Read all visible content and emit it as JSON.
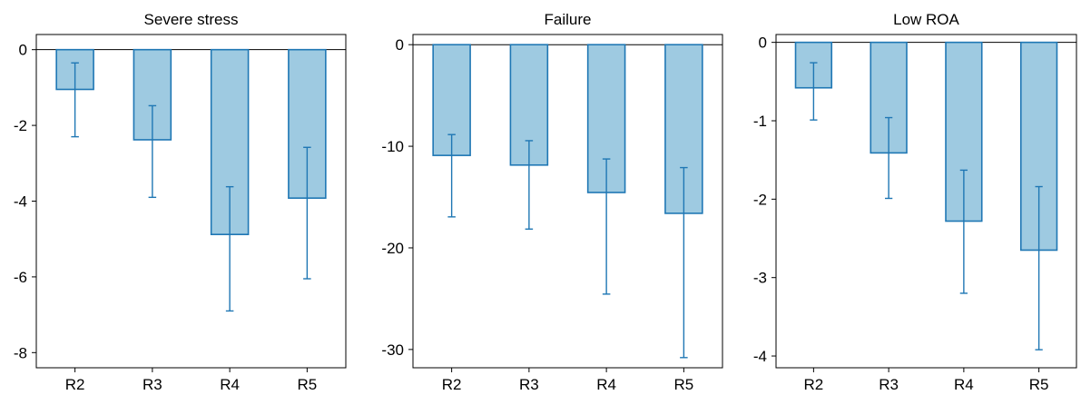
{
  "chart_data": [
    {
      "type": "bar",
      "title": "Severe stress",
      "categories": [
        "R2",
        "R3",
        "R4",
        "R5"
      ],
      "values": [
        -1.05,
        -2.38,
        -4.88,
        -3.92
      ],
      "error_low": [
        -2.3,
        -3.9,
        -6.9,
        -6.05
      ],
      "error_high": [
        -0.35,
        -1.48,
        -3.62,
        -2.58
      ],
      "ylim": [
        -8.4,
        0.4
      ],
      "yticks": [
        0,
        -2,
        -4,
        -6,
        -8
      ],
      "zero_line": true,
      "grid": false
    },
    {
      "type": "bar",
      "title": "Failure",
      "categories": [
        "R2",
        "R3",
        "R4",
        "R5"
      ],
      "values": [
        -10.9,
        -11.85,
        -14.55,
        -16.6
      ],
      "error_low": [
        -16.95,
        -18.15,
        -24.55,
        -30.8
      ],
      "error_high": [
        -8.85,
        -9.45,
        -11.25,
        -12.1
      ],
      "ylim": [
        -31.8,
        1.0
      ],
      "yticks": [
        0,
        -10,
        -20,
        -30
      ],
      "zero_line": true,
      "grid": false
    },
    {
      "type": "bar",
      "title": "Low ROA",
      "categories": [
        "R2",
        "R3",
        "R4",
        "R5"
      ],
      "values": [
        -0.58,
        -1.41,
        -2.28,
        -2.65
      ],
      "error_low": [
        -0.99,
        -1.99,
        -3.2,
        -3.92
      ],
      "error_high": [
        -0.26,
        -0.96,
        -1.63,
        -1.84
      ],
      "ylim": [
        -4.15,
        0.1
      ],
      "yticks": [
        0,
        -1,
        -2,
        -3,
        -4
      ],
      "zero_line": true,
      "grid": false
    }
  ],
  "colors": {
    "bar_fill": "#9ecae1",
    "bar_stroke": "#1f77b4",
    "error_bar": "#1f77b4",
    "axis": "#000000"
  }
}
